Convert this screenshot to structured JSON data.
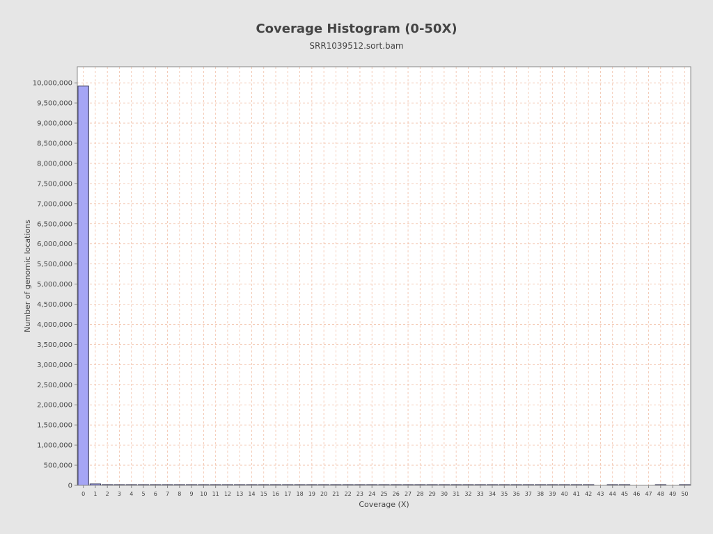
{
  "chart_data": {
    "type": "bar",
    "title": "Coverage Histogram (0-50X)",
    "subtitle": "SRR1039512.sort.bam",
    "xlabel": "Coverage (X)",
    "ylabel": "Number of genomic locations",
    "x": [
      0,
      1,
      2,
      3,
      4,
      5,
      6,
      7,
      8,
      9,
      10,
      11,
      12,
      13,
      14,
      15,
      16,
      17,
      18,
      19,
      20,
      21,
      22,
      23,
      24,
      25,
      26,
      27,
      28,
      29,
      30,
      31,
      32,
      33,
      34,
      35,
      36,
      37,
      38,
      39,
      40,
      41,
      42,
      43,
      44,
      45,
      46,
      47,
      48,
      49,
      50
    ],
    "values": [
      9920000,
      35000,
      18000,
      9000,
      6000,
      4500,
      3500,
      3000,
      2500,
      2200,
      2000,
      1800,
      1600,
      1500,
      1400,
      1300,
      1200,
      1100,
      1000,
      900,
      850,
      800,
      750,
      700,
      650,
      600,
      560,
      520,
      480,
      450,
      420,
      390,
      360,
      340,
      320,
      300,
      280,
      260,
      240,
      220,
      200,
      190,
      180,
      0,
      160,
      150,
      0,
      0,
      120,
      0,
      300
    ],
    "ylim": [
      0,
      10400000
    ],
    "yticks": [
      0,
      500000,
      1000000,
      1500000,
      2000000,
      2500000,
      3000000,
      3500000,
      4000000,
      4500000,
      5000000,
      5500000,
      6000000,
      6500000,
      7000000,
      7500000,
      8000000,
      8500000,
      9000000,
      9500000,
      10000000
    ],
    "ytick_labels": [
      "0",
      "500,000",
      "1,000,000",
      "1,500,000",
      "2,000,000",
      "2,500,000",
      "3,000,000",
      "3,500,000",
      "4,000,000",
      "4,500,000",
      "5,000,000",
      "5,500,000",
      "6,000,000",
      "6,500,000",
      "7,000,000",
      "7,500,000",
      "8,000,000",
      "8,500,000",
      "9,000,000",
      "9,500,000",
      "10,000,000"
    ],
    "grid": true,
    "legend": false,
    "colors": {
      "bar_fill": "#a5a5f5",
      "bar_stroke": "#333355",
      "grid": "#f2c0a8",
      "plot_bg": "#ffffff",
      "frame": "#888888"
    }
  }
}
